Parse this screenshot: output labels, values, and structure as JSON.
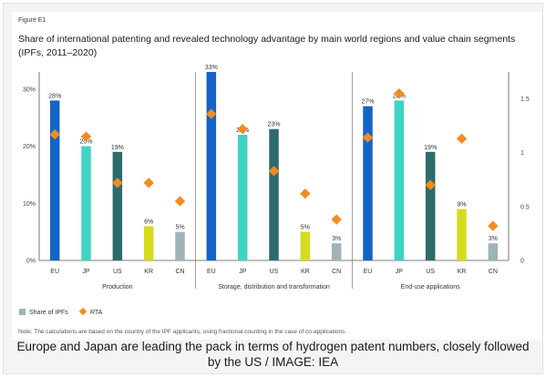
{
  "figure_label": "Figure E1",
  "title": "Share of international patenting and revealed technology advantage by main world regions and value chain segments",
  "subtitle": "(IPFs, 2011–2020)",
  "note": "Note: The calculations are based on the country of the IPF applicants, using fractional counting in the case of co-applications.",
  "caption": "Europe and Japan are leading the pack in terms of hydrogen patent numbers, closely followed by the US / IMAGE: IEA",
  "colors": {
    "EU": "#1464c8",
    "JP": "#3fd3c3",
    "US": "#2e6b6b",
    "KR": "#d4dc1e",
    "CN": "#9fb3b8",
    "rta": "#f28c1e"
  },
  "chart_data": {
    "type": "bar",
    "categories": [
      "EU",
      "JP",
      "US",
      "KR",
      "CN"
    ],
    "groups": [
      {
        "name": "Production",
        "ipf_share": [
          28,
          20,
          19,
          6,
          5
        ],
        "rta": [
          1.17,
          1.15,
          0.72,
          0.72,
          0.55
        ]
      },
      {
        "name": "Storage, distribution and transformation",
        "ipf_share": [
          33,
          22,
          23,
          5,
          3
        ],
        "rta": [
          1.36,
          1.22,
          0.83,
          0.62,
          0.38
        ]
      },
      {
        "name": "End-use applications",
        "ipf_share": [
          27,
          28,
          19,
          9,
          3
        ],
        "rta": [
          1.14,
          1.55,
          0.7,
          1.13,
          0.32
        ]
      }
    ],
    "series": [
      {
        "name": "Share of IPFs"
      },
      {
        "name": "RTA"
      }
    ],
    "ylim_left": [
      0,
      33
    ],
    "yticks_left": [
      "0%",
      "10%",
      "20%",
      "30%"
    ],
    "ylim_right": [
      0,
      1.75
    ],
    "yticks_right": [
      "0",
      "0.5",
      "1",
      "1.5"
    ],
    "legend": "bottom-left",
    "grid": false
  }
}
